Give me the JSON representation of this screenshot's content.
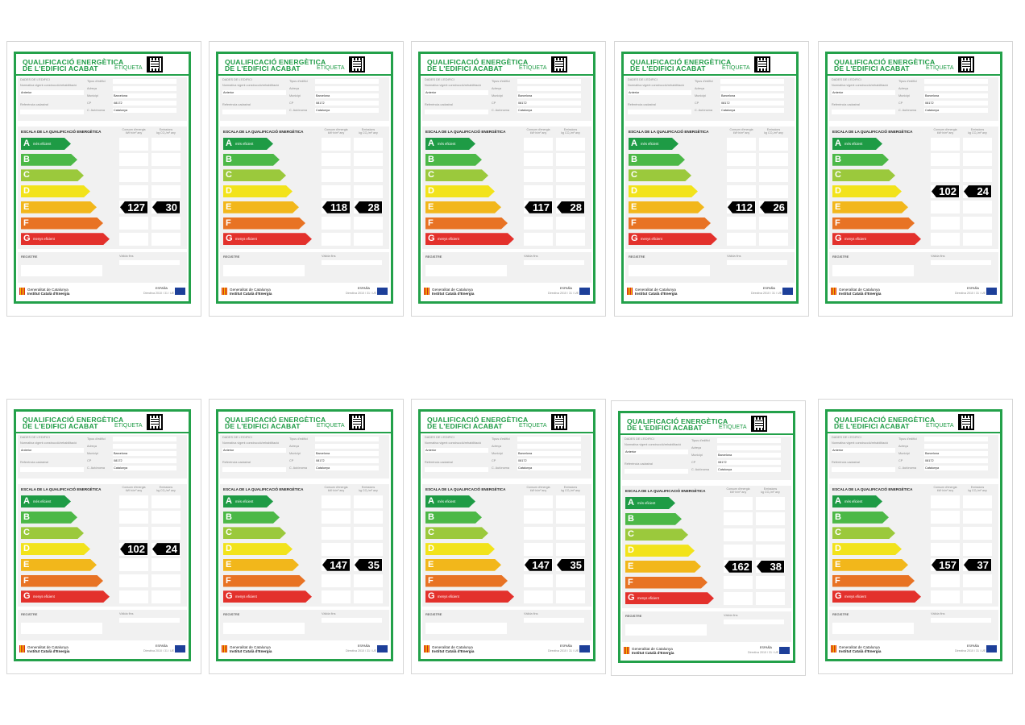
{
  "labels": {
    "title_line1": "QUALIFICACIÓ ENERGÈTICA",
    "title_line2": "DE L'EDIFICI ACABAT",
    "etiqueta": "ETIQUETA",
    "dades": "DADES DE L'EDIFICI",
    "normativa": "Normativa vigent construcció/rehabilitació",
    "tipus": "Tipus d'edifici",
    "adreca": "Adreça",
    "municipi": "Municipi",
    "cp": "CP",
    "ca": "C. Autònoma",
    "referencia": "Referència cadastral",
    "normativa_value": "Anterior",
    "municipi_value": "Barcelona",
    "cp_value": "08172",
    "ca_value": "Catalunya",
    "escala": "ESCALA DE LA QUALIFICACIÓ ENERGÈTICA",
    "consum_h1": "Consum d'energia",
    "consum_h2": "kW·h/m² any",
    "emissions_h1": "Emissions",
    "emissions_h2": "kg CO₂/m² any",
    "mes_eficient": "més eficient",
    "menys_eficient": "menys eficient",
    "registre": "REGISTRE",
    "validesa": "Vàlida fins",
    "gen1": "Generalitat de Catalunya",
    "gen2": "Institut Català d'Energia",
    "espanya": "ESPAÑA",
    "directiva": "Directiva 2010 / 31 / UE"
  },
  "grades": [
    "A",
    "B",
    "C",
    "D",
    "E",
    "F",
    "G"
  ],
  "grade_colors": [
    "#1e9b45",
    "#4cb847",
    "#9bc93c",
    "#f2e31b",
    "#f2b71b",
    "#e87324",
    "#e3312c"
  ],
  "labels_list": [
    {
      "consum": "127",
      "emissions": "30",
      "grade_index": 4
    },
    {
      "consum": "118",
      "emissions": "28",
      "grade_index": 4
    },
    {
      "consum": "117",
      "emissions": "28",
      "grade_index": 4
    },
    {
      "consum": "112",
      "emissions": "26",
      "grade_index": 4
    },
    {
      "consum": "102",
      "emissions": "24",
      "grade_index": 3
    },
    {
      "consum": "102",
      "emissions": "24",
      "grade_index": 3
    },
    {
      "consum": "147",
      "emissions": "35",
      "grade_index": 4
    },
    {
      "consum": "147",
      "emissions": "35",
      "grade_index": 4
    },
    {
      "consum": "162",
      "emissions": "38",
      "grade_index": 4
    },
    {
      "consum": "157",
      "emissions": "37",
      "grade_index": 4
    }
  ]
}
